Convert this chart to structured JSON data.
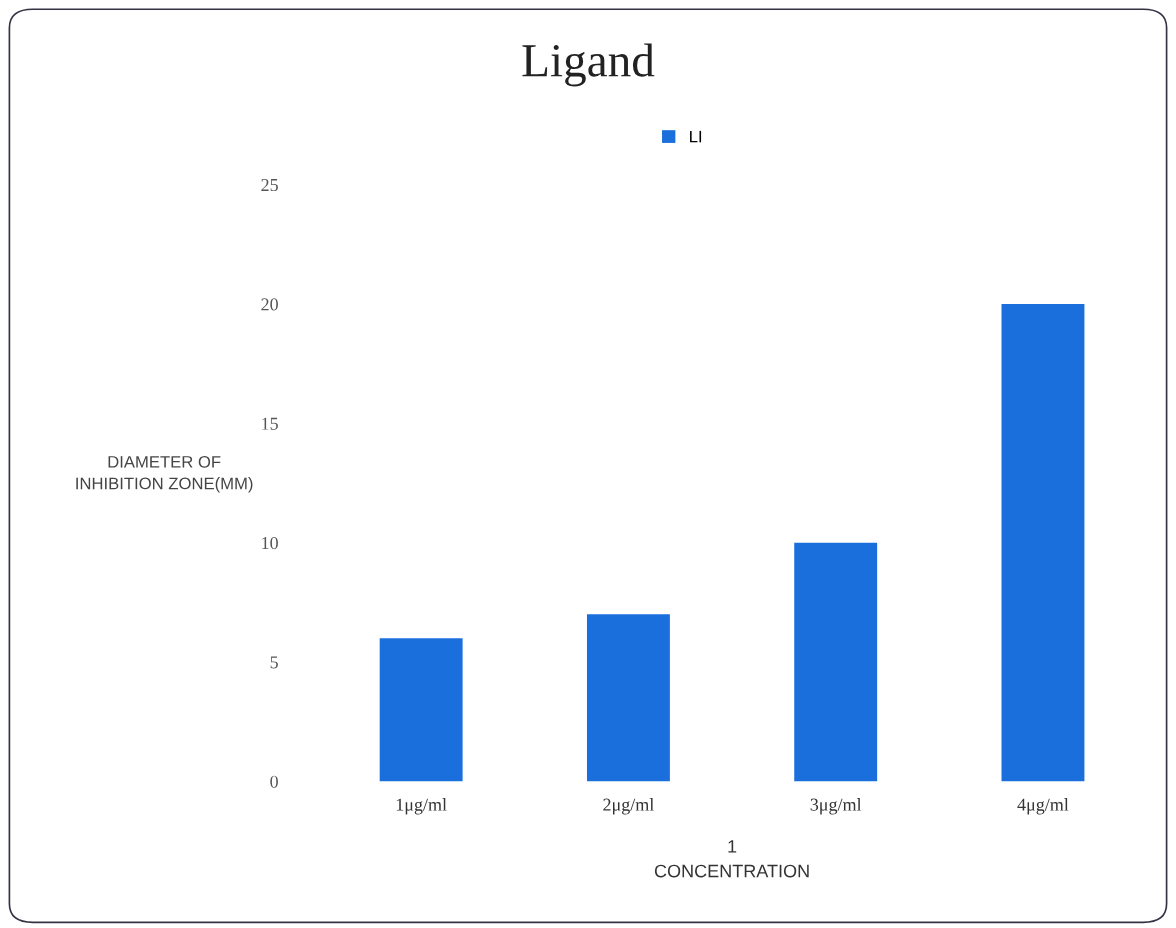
{
  "chart_data": {
    "type": "bar",
    "title": "Ligand",
    "xlabel": "1\nCONCENTRATION",
    "ylabel": "DIAMETER OF\nINHIBITION ZONE(MM)",
    "categories": [
      "1μg/ml",
      "2μg/ml",
      "3μg/ml",
      "4μg/ml"
    ],
    "series": [
      {
        "name": "LI",
        "color": "#1a6fdc",
        "values": [
          6,
          7,
          10,
          20
        ]
      }
    ],
    "ylim": [
      0,
      25
    ],
    "yticks": [
      0,
      5,
      10,
      15,
      20,
      25
    ],
    "grid": false,
    "legend": "top"
  }
}
